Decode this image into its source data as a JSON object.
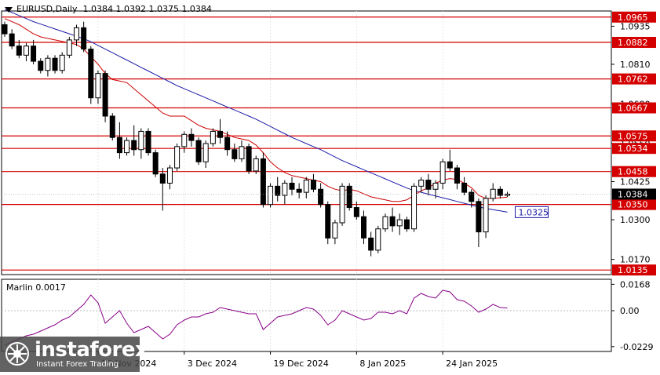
{
  "header": {
    "symbol": "EURUSD,Daily",
    "ohlc": "1.0384 1.0392 1.0375 1.0384"
  },
  "indicator": {
    "label": "Marlin 0.0017"
  },
  "logo": {
    "brand": "instaforex",
    "tagline": "Instant Forex Trading"
  },
  "colors": {
    "bg": "#ffffff",
    "grid": "#e6e6e6",
    "level_line": "#d40000",
    "ma_red": "#cc0000",
    "ma_blue": "#1a1aa6",
    "marlin": "#880088",
    "candle": "#000000"
  },
  "chart_data": {
    "type": "candlestick",
    "price_scale": {
      "ticks": [
        "1.0935",
        "1.0810",
        "1.0680",
        "1.0550",
        "1.0425",
        "1.0300",
        "1.0170"
      ],
      "tick_values": [
        1.0935,
        1.081,
        1.068,
        1.055,
        1.0425,
        1.03,
        1.017
      ],
      "range": [
        1.012,
        1.0985
      ]
    },
    "levels": [
      {
        "value": 1.0965,
        "label": "1.0965"
      },
      {
        "value": 1.0882,
        "label": "1.0882"
      },
      {
        "value": 1.0762,
        "label": "1.0762"
      },
      {
        "value": 1.0667,
        "label": "1.0667"
      },
      {
        "value": 1.0575,
        "label": "1.0575"
      },
      {
        "value": 1.0534,
        "label": "1.0534"
      },
      {
        "value": 1.0458,
        "label": "1.0458"
      },
      {
        "value": 1.035,
        "label": "1.0350"
      },
      {
        "value": 1.0135,
        "label": "1.0135"
      }
    ],
    "current_price": {
      "value": 1.0384,
      "label": "1.0384"
    },
    "blue_ma_label": {
      "value": 1.0325,
      "label": "1.0325"
    },
    "x_labels": [
      "15 Nov 2024",
      "3 Dec 2024",
      "19 Dec 2024",
      "8 Jan 2025",
      "24 Jan 2025"
    ],
    "x_label_index": [
      13,
      25,
      37,
      49,
      61
    ],
    "candles": [
      [
        1.094,
        1.095,
        1.09,
        1.091
      ],
      [
        1.091,
        1.0925,
        1.086,
        1.087
      ],
      [
        1.087,
        1.089,
        1.083,
        1.084
      ],
      [
        1.084,
        1.088,
        1.082,
        1.087
      ],
      [
        1.087,
        1.089,
        1.081,
        1.082
      ],
      [
        1.082,
        1.083,
        1.078,
        1.079
      ],
      [
        1.079,
        1.084,
        1.077,
        1.083
      ],
      [
        1.083,
        1.084,
        1.078,
        1.079
      ],
      [
        1.079,
        1.085,
        1.078,
        1.084
      ],
      [
        1.084,
        1.09,
        1.083,
        1.089
      ],
      [
        1.089,
        1.094,
        1.087,
        1.093
      ],
      [
        1.093,
        1.095,
        1.085,
        1.086
      ],
      [
        1.086,
        1.087,
        1.068,
        1.07
      ],
      [
        1.07,
        1.079,
        1.068,
        1.078
      ],
      [
        1.078,
        1.079,
        1.062,
        1.064
      ],
      [
        1.064,
        1.065,
        1.056,
        1.057
      ],
      [
        1.057,
        1.062,
        1.05,
        1.052
      ],
      [
        1.052,
        1.057,
        1.051,
        1.056
      ],
      [
        1.056,
        1.061,
        1.051,
        1.053
      ],
      [
        1.053,
        1.06,
        1.05,
        1.059
      ],
      [
        1.059,
        1.06,
        1.051,
        1.052
      ],
      [
        1.052,
        1.053,
        1.044,
        1.045
      ],
      [
        1.045,
        1.047,
        1.033,
        1.042
      ],
      [
        1.042,
        1.048,
        1.04,
        1.047
      ],
      [
        1.047,
        1.055,
        1.046,
        1.054
      ],
      [
        1.054,
        1.059,
        1.052,
        1.058
      ],
      [
        1.058,
        1.06,
        1.054,
        1.056
      ],
      [
        1.056,
        1.057,
        1.048,
        1.049
      ],
      [
        1.049,
        1.056,
        1.047,
        1.055
      ],
      [
        1.055,
        1.06,
        1.054,
        1.059
      ],
      [
        1.059,
        1.063,
        1.055,
        1.057
      ],
      [
        1.057,
        1.059,
        1.051,
        1.053
      ],
      [
        1.053,
        1.055,
        1.049,
        1.05
      ],
      [
        1.05,
        1.056,
        1.049,
        1.054
      ],
      [
        1.054,
        1.055,
        1.045,
        1.046
      ],
      [
        1.046,
        1.051,
        1.045,
        1.05
      ],
      [
        1.05,
        1.052,
        1.034,
        1.035
      ],
      [
        1.035,
        1.042,
        1.034,
        1.041
      ],
      [
        1.041,
        1.044,
        1.036,
        1.038
      ],
      [
        1.038,
        1.043,
        1.035,
        1.042
      ],
      [
        1.042,
        1.044,
        1.038,
        1.04
      ],
      [
        1.04,
        1.042,
        1.037,
        1.039
      ],
      [
        1.039,
        1.044,
        1.037,
        1.043
      ],
      [
        1.043,
        1.045,
        1.039,
        1.04
      ],
      [
        1.04,
        1.042,
        1.034,
        1.035
      ],
      [
        1.035,
        1.036,
        1.022,
        1.024
      ],
      [
        1.024,
        1.03,
        1.022,
        1.029
      ],
      [
        1.029,
        1.042,
        1.028,
        1.041
      ],
      [
        1.041,
        1.042,
        1.033,
        1.034
      ],
      [
        1.034,
        1.036,
        1.03,
        1.031
      ],
      [
        1.031,
        1.033,
        1.022,
        1.024
      ],
      [
        1.024,
        1.026,
        1.018,
        1.02
      ],
      [
        1.02,
        1.028,
        1.019,
        1.027
      ],
      [
        1.027,
        1.032,
        1.026,
        1.031
      ],
      [
        1.031,
        1.034,
        1.026,
        1.028
      ],
      [
        1.028,
        1.032,
        1.025,
        1.03
      ],
      [
        1.03,
        1.031,
        1.026,
        1.027
      ],
      [
        1.027,
        1.042,
        1.026,
        1.041
      ],
      [
        1.041,
        1.044,
        1.039,
        1.043
      ],
      [
        1.043,
        1.045,
        1.038,
        1.04
      ],
      [
        1.04,
        1.043,
        1.037,
        1.042
      ],
      [
        1.042,
        1.05,
        1.04,
        1.049
      ],
      [
        1.049,
        1.053,
        1.046,
        1.047
      ],
      [
        1.047,
        1.048,
        1.04,
        1.042
      ],
      [
        1.042,
        1.044,
        1.038,
        1.039
      ],
      [
        1.039,
        1.04,
        1.034,
        1.036
      ],
      [
        1.036,
        1.037,
        1.021,
        1.026
      ],
      [
        1.026,
        1.038,
        1.024,
        1.037
      ],
      [
        1.037,
        1.042,
        1.036,
        1.04
      ],
      [
        1.04,
        1.041,
        1.037,
        1.038
      ],
      [
        1.038,
        1.0392,
        1.0375,
        1.0384
      ]
    ],
    "ma_red": [
      1.096,
      1.095,
      1.094,
      1.0925,
      1.091,
      1.09,
      1.0895,
      1.089,
      1.0885,
      1.088,
      1.0875,
      1.086,
      1.0835,
      1.081,
      1.078,
      1.076,
      1.0755,
      1.075,
      1.073,
      1.071,
      1.069,
      1.067,
      1.065,
      1.064,
      1.064,
      1.064,
      1.0625,
      1.061,
      1.06,
      1.0595,
      1.059,
      1.058,
      1.057,
      1.0565,
      1.056,
      1.0545,
      1.052,
      1.049,
      1.047,
      1.0455,
      1.0445,
      1.044,
      1.0435,
      1.043,
      1.0425,
      1.041,
      1.04,
      1.0395,
      1.04,
      1.0395,
      1.0385,
      1.0375,
      1.037,
      1.0365,
      1.036,
      1.036,
      1.0365,
      1.038,
      1.0395,
      1.0405,
      1.042,
      1.043,
      1.0435,
      1.0432,
      1.042,
      1.0405,
      1.038,
      1.037,
      1.037,
      1.0372,
      1.0374
    ],
    "ma_blue": [
      1.099,
      1.098,
      1.097,
      1.096,
      1.095,
      1.0942,
      1.0934,
      1.0926,
      1.0918,
      1.091,
      1.0902,
      1.0894,
      1.0884,
      1.0872,
      1.086,
      1.0848,
      1.0836,
      1.0824,
      1.0812,
      1.08,
      1.0788,
      1.0776,
      1.0764,
      1.0752,
      1.074,
      1.073,
      1.072,
      1.071,
      1.07,
      1.069,
      1.068,
      1.067,
      1.066,
      1.065,
      1.064,
      1.063,
      1.0618,
      1.0606,
      1.0594,
      1.0582,
      1.057,
      1.056,
      1.055,
      1.054,
      1.053,
      1.0518,
      1.0506,
      1.0494,
      1.0484,
      1.0474,
      1.0464,
      1.0454,
      1.0444,
      1.0434,
      1.0424,
      1.0414,
      1.0404,
      1.0396,
      1.039,
      1.0384,
      1.0378,
      1.0372,
      1.0366,
      1.036,
      1.0354,
      1.0348,
      1.0342,
      1.0337,
      1.0333,
      1.0329,
      1.0325
    ],
    "marlin": {
      "label": "Marlin 0.0017",
      "ticks": [
        "0.0168",
        "0.00",
        "-0.0229"
      ],
      "tick_values": [
        0.0168,
        0.0,
        -0.0229
      ],
      "range": [
        -0.026,
        0.02
      ],
      "values": [
        -0.022,
        -0.02,
        -0.018,
        -0.016,
        -0.015,
        -0.013,
        -0.011,
        -0.009,
        -0.006,
        -0.004,
        0.0,
        0.004,
        0.01,
        0.005,
        -0.008,
        -0.004,
        0.0,
        -0.008,
        -0.014,
        -0.012,
        -0.01,
        -0.014,
        -0.018,
        -0.015,
        -0.009,
        -0.006,
        -0.004,
        -0.004,
        -0.002,
        -0.001,
        0.002,
        0.001,
        0.0,
        -0.001,
        -0.002,
        -0.002,
        -0.012,
        -0.008,
        -0.004,
        -0.003,
        -0.002,
        0.0,
        0.002,
        0.001,
        -0.003,
        -0.009,
        -0.006,
        0.0,
        -0.002,
        -0.004,
        -0.006,
        -0.005,
        -0.001,
        -0.001,
        -0.002,
        0.0,
        -0.002,
        0.008,
        0.011,
        0.009,
        0.008,
        0.013,
        0.012,
        0.007,
        0.006,
        0.003,
        -0.001,
        0.001,
        0.004,
        0.002,
        0.0017
      ]
    }
  }
}
